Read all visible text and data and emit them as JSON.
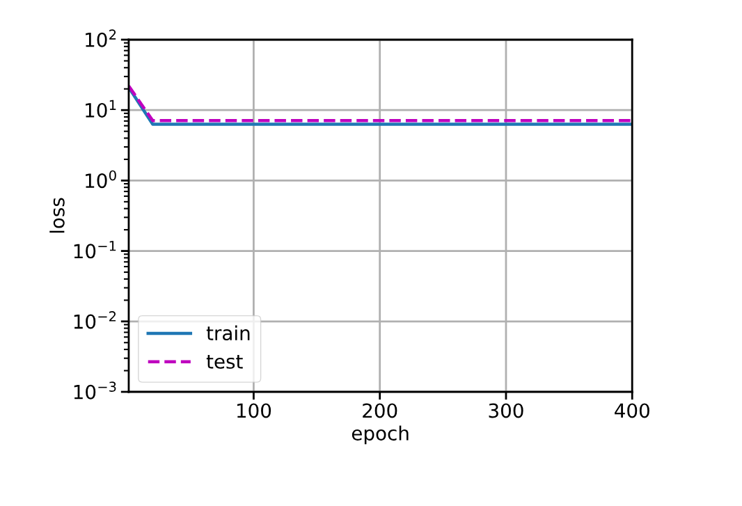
{
  "chart_data": {
    "type": "line",
    "xlabel": "epoch",
    "ylabel": "loss",
    "x": [
      1,
      20,
      40,
      60,
      80,
      100,
      120,
      140,
      160,
      180,
      200,
      220,
      240,
      260,
      280,
      300,
      320,
      340,
      360,
      380,
      400
    ],
    "series": [
      {
        "name": "train",
        "color": "#1f77b4",
        "line_style": "solid",
        "values": [
          21,
          6.3,
          6.3,
          6.3,
          6.3,
          6.3,
          6.3,
          6.3,
          6.3,
          6.3,
          6.3,
          6.3,
          6.3,
          6.3,
          6.3,
          6.3,
          6.3,
          6.3,
          6.3,
          6.3,
          6.3
        ]
      },
      {
        "name": "test",
        "color": "#bf00bf",
        "line_style": "dashed",
        "values": [
          22,
          7.1,
          7.1,
          7.1,
          7.1,
          7.1,
          7.1,
          7.1,
          7.1,
          7.1,
          7.1,
          7.1,
          7.1,
          7.1,
          7.1,
          7.1,
          7.1,
          7.1,
          7.1,
          7.1,
          7.1
        ]
      }
    ],
    "log": "y",
    "xlim": [
      1,
      400
    ],
    "xticks": [
      100,
      200,
      300,
      400
    ],
    "ylim": [
      0.001,
      100
    ],
    "yticks": [
      {
        "value": 0.001,
        "label": "10$^{−3}$"
      },
      {
        "value": 0.01,
        "label": "10$^{−2}$"
      },
      {
        "value": 0.1,
        "label": "10$^{−1}$"
      },
      {
        "value": 1,
        "label": "10$^{0}$"
      },
      {
        "value": 10,
        "label": "10$^{1}$"
      },
      {
        "value": 100,
        "label": "10$^{2}$"
      }
    ],
    "grid": true,
    "legend": "bottom left"
  }
}
